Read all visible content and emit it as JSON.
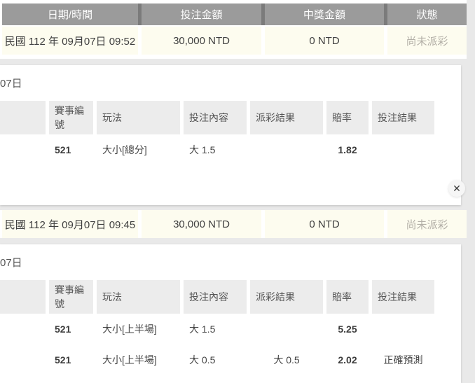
{
  "colors": {
    "header_bg": "#9b9b9b",
    "header_divider": "#7b7b7b",
    "row_bg": "#fdfcef",
    "status_text": "#b3afa7",
    "page_bg": "#e9e9e9",
    "panel_bg": "#ffffff"
  },
  "summary_table": {
    "headers": [
      "日期/時間",
      "投注金額",
      "中獎金額",
      "狀態"
    ],
    "rows": [
      {
        "datetime": "民國 112 年 09月07日 09:52",
        "bet_amount": "30,000 NTD",
        "win_amount": "0 NTD",
        "status": "尚未派彩"
      },
      {
        "datetime": "民國 112 年 09月07日 09:45",
        "bet_amount": "30,000 NTD",
        "win_amount": "0 NTD",
        "status": "尚未派彩"
      }
    ]
  },
  "panels": [
    {
      "date_label": "07日",
      "detail_headers": [
        "賽事編號",
        "玩法",
        "投注內容",
        "派彩結果",
        "賠率",
        "投注結果"
      ],
      "rows": [
        [
          "521",
          "大小[總分]",
          "大 1.5",
          "",
          "1.82",
          ""
        ]
      ],
      "close_icon": "✕"
    },
    {
      "date_label": "07日",
      "detail_headers": [
        "賽事編號",
        "玩法",
        "投注內容",
        "派彩結果",
        "賠率",
        "投注結果"
      ],
      "rows": [
        [
          "521",
          "大小[上半場]",
          "大 1.5",
          "",
          "5.25",
          ""
        ],
        [
          "521",
          "大小[上半場]",
          "大 0.5",
          "大 0.5",
          "2.02",
          "正確預測"
        ]
      ]
    }
  ]
}
